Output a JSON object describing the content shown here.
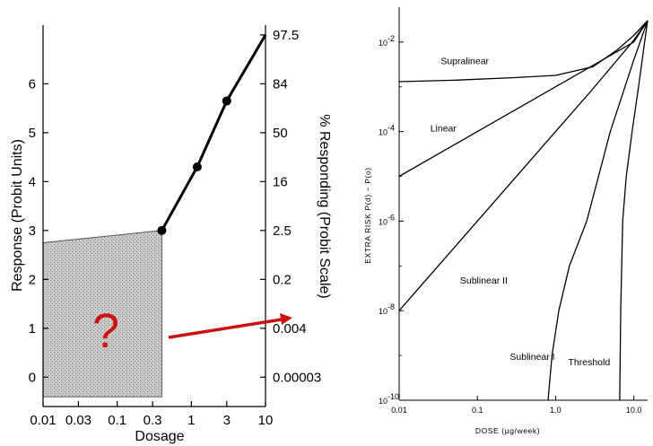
{
  "chart_data": [
    {
      "type": "line",
      "title": "",
      "xlabel": "Dosage",
      "ylabel": "Response (Probit Units)",
      "y2label": "% Responding (Probit Scale)",
      "x_scale": "log",
      "x_ticks": [
        "0.01",
        "0.03",
        "0.1",
        "0.3",
        "1",
        "3",
        "10"
      ],
      "x_tick_values": [
        0.01,
        0.03,
        0.1,
        0.3,
        1,
        3,
        10
      ],
      "y_ticks": [
        "0",
        "1",
        "2",
        "3",
        "4",
        "5",
        "6"
      ],
      "y_tick_values": [
        0,
        1,
        2,
        3,
        4,
        5,
        6
      ],
      "y2_ticks": [
        "0.00003",
        "0.004",
        "0.2",
        "2.5",
        "16",
        "50",
        "84",
        "97.5"
      ],
      "y2_tick_values": [
        0,
        1,
        2,
        3,
        4,
        5,
        6,
        7
      ],
      "xlim": [
        0.01,
        10
      ],
      "ylim": [
        -0.6,
        7.2
      ],
      "series": [
        {
          "x": [
            0.4,
            1.2,
            3,
            10
          ],
          "y": [
            3.0,
            4.3,
            5.65,
            7.0
          ],
          "markers": [
            true,
            true,
            true,
            false
          ]
        }
      ],
      "shaded_region": {
        "x": [
          0.01,
          0.4
        ],
        "y_top": [
          2.75,
          3.0
        ],
        "y_bottom": -0.4
      },
      "annotation": "?",
      "arrow_color": "#cc1111"
    },
    {
      "type": "line",
      "title": "",
      "xlabel": "DOSE (µg/week)",
      "ylabel": "EXTRA RISK P(d) − P(o)",
      "x_scale": "log",
      "y_scale": "log",
      "x_ticks": [
        "0.01",
        "0.1",
        "1.0",
        "10.0"
      ],
      "x_tick_values": [
        0.01,
        0.1,
        1,
        10
      ],
      "y_ticks": [
        "10",
        "10",
        "10",
        "10",
        "10"
      ],
      "y_tick_exponents": [
        "-10",
        "-8",
        "-6",
        "-4",
        "-2"
      ],
      "y_tick_values": [
        1e-10,
        1e-08,
        1e-06,
        0.0001,
        0.01
      ],
      "xlim": [
        0.01,
        15
      ],
      "ylim": [
        1e-10,
        0.06
      ],
      "series": [
        {
          "name": "Supralinear",
          "x": [
            0.01,
            0.05,
            0.3,
            1,
            3,
            6,
            10,
            15
          ],
          "y": [
            0.0013,
            0.0014,
            0.0016,
            0.0018,
            0.0028,
            0.0065,
            0.014,
            0.03
          ]
        },
        {
          "name": "Linear",
          "x": [
            0.01,
            0.03,
            0.1,
            0.3,
            1,
            3,
            10,
            15
          ],
          "y": [
            1e-05,
            3e-05,
            0.0001,
            0.0003,
            0.001,
            0.003,
            0.01,
            0.03
          ]
        },
        {
          "name": "Sublinear II",
          "x": [
            0.01,
            0.03,
            0.1,
            0.3,
            1,
            3,
            10,
            15
          ],
          "y": [
            1e-08,
            9e-08,
            1e-06,
            9e-06,
            0.0001,
            0.0009,
            0.011,
            0.03
          ]
        },
        {
          "name": "Sublinear I",
          "x": [
            0.8,
            0.9,
            1.1,
            1.5,
            2.5,
            5,
            10,
            15
          ],
          "y": [
            1e-10,
            1e-09,
            1e-08,
            1e-07,
            1e-06,
            0.0001,
            0.004,
            0.03
          ]
        },
        {
          "name": "Threshold",
          "x": [
            6.6,
            6.8,
            7.2,
            8,
            9.5,
            11.5,
            13.5,
            15
          ],
          "y": [
            1e-10,
            1e-08,
            1e-06,
            1e-05,
            0.0001,
            0.001,
            0.008,
            0.03
          ]
        }
      ]
    }
  ]
}
